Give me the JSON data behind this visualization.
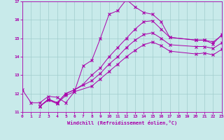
{
  "xlabel": "Windchill (Refroidissement éolien,°C)",
  "xlim": [
    0,
    23
  ],
  "ylim": [
    11,
    17
  ],
  "yticks": [
    11,
    12,
    13,
    14,
    15,
    16,
    17
  ],
  "xticks": [
    0,
    1,
    2,
    3,
    4,
    5,
    6,
    7,
    8,
    9,
    10,
    11,
    12,
    13,
    14,
    15,
    16,
    17,
    18,
    19,
    20,
    21,
    22,
    23
  ],
  "bg_color": "#c8eaea",
  "line_color": "#aa00aa",
  "grid_color": "#a0cccc",
  "line1_x": [
    0,
    1,
    2,
    3,
    4,
    5,
    6,
    7,
    8,
    9,
    10,
    11,
    12,
    13,
    14,
    15,
    16,
    17,
    20,
    21,
    22,
    23
  ],
  "line1_y": [
    12.2,
    11.5,
    11.5,
    11.85,
    11.8,
    11.5,
    12.1,
    13.5,
    13.8,
    15.0,
    16.3,
    16.5,
    17.1,
    16.7,
    16.4,
    16.3,
    15.9,
    15.05,
    14.9,
    14.9,
    14.7,
    15.2
  ],
  "line2_x": [
    2,
    3,
    4,
    5,
    6,
    7,
    8,
    9,
    10,
    11,
    12,
    13,
    14,
    15,
    16,
    17,
    20,
    21,
    22,
    23
  ],
  "line2_y": [
    11.3,
    11.7,
    11.5,
    12.0,
    12.2,
    12.5,
    13.0,
    13.4,
    14.0,
    14.5,
    15.0,
    15.5,
    15.9,
    15.95,
    15.5,
    15.05,
    14.9,
    14.9,
    14.8,
    15.15
  ],
  "line3_x": [
    2,
    3,
    4,
    5,
    6,
    8,
    9,
    10,
    11,
    12,
    13,
    14,
    15,
    16,
    17,
    20,
    21,
    22,
    23
  ],
  "line3_y": [
    11.3,
    11.7,
    11.5,
    12.0,
    12.2,
    12.7,
    13.1,
    13.6,
    14.0,
    14.5,
    14.9,
    15.2,
    15.3,
    15.0,
    14.65,
    14.55,
    14.55,
    14.45,
    14.75
  ],
  "line4_x": [
    2,
    3,
    4,
    5,
    6,
    8,
    9,
    10,
    11,
    12,
    13,
    14,
    15,
    16,
    17,
    20,
    21,
    22,
    23
  ],
  "line4_y": [
    11.3,
    11.65,
    11.45,
    11.9,
    12.1,
    12.4,
    12.8,
    13.2,
    13.6,
    14.0,
    14.35,
    14.65,
    14.8,
    14.6,
    14.3,
    14.15,
    14.2,
    14.1,
    14.4
  ]
}
